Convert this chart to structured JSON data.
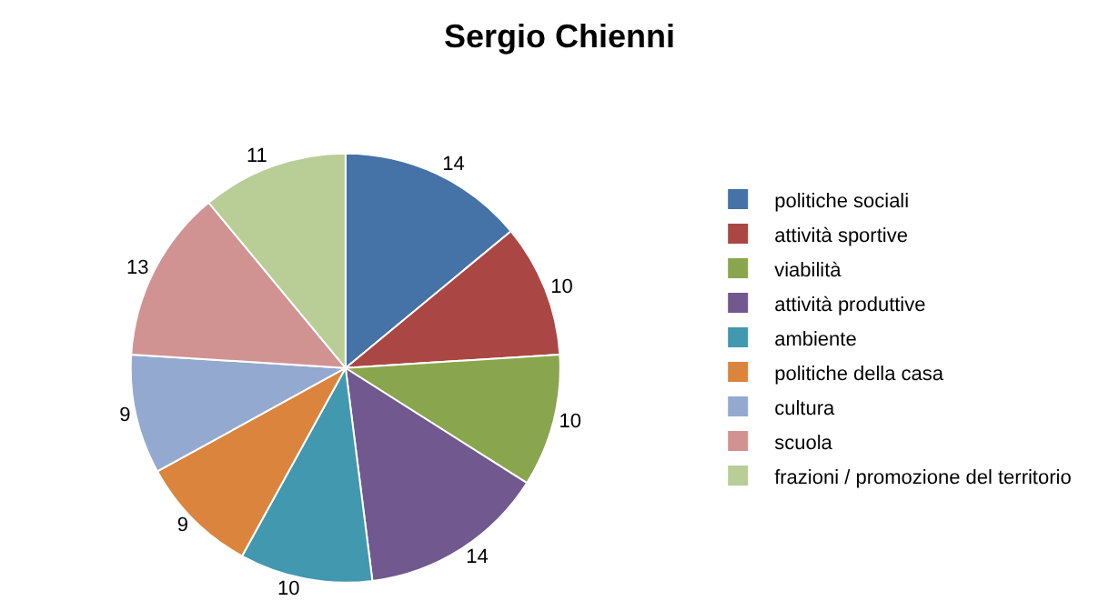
{
  "chart_data": {
    "type": "pie",
    "title": "Sergio Chienni",
    "categories": [
      "politiche sociali",
      "attività sportive",
      "viabilità",
      "attività produttive",
      "ambiente",
      "politiche della casa",
      "cultura",
      "scuola",
      "frazioni / promozione del territorio"
    ],
    "values": [
      14,
      10,
      10,
      14,
      10,
      9,
      9,
      13,
      11
    ],
    "colors": [
      "#4572a7",
      "#aa4643",
      "#89a54e",
      "#71588f",
      "#4198af",
      "#db843d",
      "#93a9cf",
      "#d19392",
      "#b9cd96"
    ],
    "data_labels": true,
    "legend": "right"
  }
}
